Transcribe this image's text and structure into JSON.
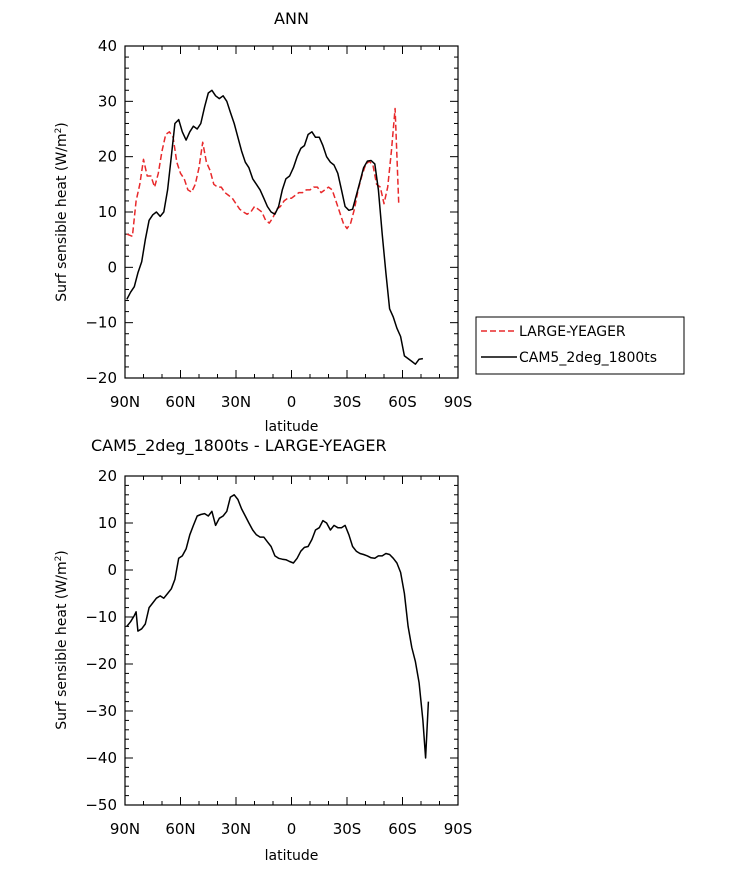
{
  "chart_data": [
    {
      "type": "line",
      "title": "ANN",
      "xlabel": "latitude",
      "ylabel": "Surf sensible heat (W/m²)",
      "ylabel_main": "Surf sensible heat (W/m",
      "ylabel_sup": "2",
      "ylabel_end": ")",
      "xlim": [
        90,
        -90
      ],
      "ylim": [
        -20,
        40
      ],
      "x_ticks": [
        90,
        60,
        30,
        0,
        -30,
        -60,
        -90
      ],
      "x_tick_labels": [
        "90N",
        "60N",
        "30N",
        "0",
        "30S",
        "60S",
        "90S"
      ],
      "y_ticks": [
        -20,
        -10,
        0,
        10,
        20,
        30,
        40
      ],
      "y_tick_labels": [
        "−20",
        "−10",
        "0",
        "10",
        "20",
        "30",
        "40"
      ],
      "legend_position": "right",
      "series": [
        {
          "name": "LARGE-YEAGER",
          "color": "#e8292b",
          "dash": "dashed",
          "points": [
            [
              89,
              6.0
            ],
            [
              86,
              5.6
            ],
            [
              84,
              12
            ],
            [
              82,
              15
            ],
            [
              80,
              19.5
            ],
            [
              78,
              16.5
            ],
            [
              76,
              16.5
            ],
            [
              74,
              14.5
            ],
            [
              72,
              17
            ],
            [
              70,
              21
            ],
            [
              68,
              24
            ],
            [
              66,
              24.5
            ],
            [
              64,
              23.5
            ],
            [
              62,
              19
            ],
            [
              60,
              17
            ],
            [
              58,
              16
            ],
            [
              56,
              14
            ],
            [
              54,
              13.6
            ],
            [
              52,
              15
            ],
            [
              50,
              18
            ],
            [
              48,
              22.6
            ],
            [
              46,
              19
            ],
            [
              44,
              17.5
            ],
            [
              42,
              15
            ],
            [
              40,
              14.5
            ],
            [
              38,
              14.5
            ],
            [
              36,
              13.5
            ],
            [
              34,
              13
            ],
            [
              32,
              12.5
            ],
            [
              30,
              11.5
            ],
            [
              28,
              10.5
            ],
            [
              26,
              10
            ],
            [
              24,
              9.6
            ],
            [
              22,
              10
            ],
            [
              20,
              11
            ],
            [
              18,
              10.5
            ],
            [
              16,
              10
            ],
            [
              14,
              8.5
            ],
            [
              12,
              8
            ],
            [
              10,
              9
            ],
            [
              8,
              10.5
            ],
            [
              6,
              11
            ],
            [
              4,
              12
            ],
            [
              2,
              12.5
            ],
            [
              0,
              12.5
            ],
            [
              -2,
              13
            ],
            [
              -4,
              13.5
            ],
            [
              -6,
              13.5
            ],
            [
              -8,
              14
            ],
            [
              -10,
              14
            ],
            [
              -12,
              14.5
            ],
            [
              -14,
              14.5
            ],
            [
              -16,
              13.5
            ],
            [
              -18,
              14
            ],
            [
              -20,
              14.5
            ],
            [
              -22,
              14
            ],
            [
              -24,
              12
            ],
            [
              -26,
              10
            ],
            [
              -28,
              8
            ],
            [
              -30,
              7
            ],
            [
              -32,
              8
            ],
            [
              -34,
              10.5
            ],
            [
              -36,
              14
            ],
            [
              -38,
              16.5
            ],
            [
              -40,
              18.5
            ],
            [
              -42,
              19.2
            ],
            [
              -44,
              18.5
            ],
            [
              -46,
              15
            ],
            [
              -48,
              14.5
            ],
            [
              -50,
              11.5
            ],
            [
              -52,
              14.5
            ],
            [
              -54,
              21
            ],
            [
              -56,
              28.7
            ],
            [
              -58,
              11.2
            ]
          ]
        },
        {
          "name": "CAM5_2deg_1800ts",
          "color": "#000000",
          "dash": "solid",
          "points": [
            [
              89,
              -5.8
            ],
            [
              87,
              -4.5
            ],
            [
              85,
              -3.5
            ],
            [
              83,
              -1
            ],
            [
              81,
              1
            ],
            [
              79,
              5
            ],
            [
              77,
              8.5
            ],
            [
              75,
              9.5
            ],
            [
              73,
              10
            ],
            [
              71,
              9.2
            ],
            [
              69,
              10
            ],
            [
              67,
              14
            ],
            [
              65,
              20
            ],
            [
              63,
              26
            ],
            [
              61,
              26.7
            ],
            [
              59,
              24.5
            ],
            [
              57,
              23
            ],
            [
              55,
              24.5
            ],
            [
              53,
              25.5
            ],
            [
              51,
              25
            ],
            [
              49,
              26
            ],
            [
              47,
              29
            ],
            [
              45,
              31.5
            ],
            [
              43,
              32
            ],
            [
              41,
              31
            ],
            [
              39,
              30.5
            ],
            [
              37,
              31
            ],
            [
              35,
              30
            ],
            [
              33,
              28
            ],
            [
              31,
              26
            ],
            [
              29,
              23.5
            ],
            [
              27,
              21
            ],
            [
              25,
              19
            ],
            [
              23,
              18
            ],
            [
              21,
              16
            ],
            [
              19,
              15
            ],
            [
              17,
              14
            ],
            [
              15,
              12.5
            ],
            [
              13,
              11
            ],
            [
              11,
              10
            ],
            [
              9,
              9.6
            ],
            [
              7,
              11
            ],
            [
              5,
              14
            ],
            [
              3,
              16
            ],
            [
              1,
              16.5
            ],
            [
              -1,
              18
            ],
            [
              -3,
              20
            ],
            [
              -5,
              21.5
            ],
            [
              -7,
              22
            ],
            [
              -9,
              24
            ],
            [
              -11,
              24.5
            ],
            [
              -13,
              23.5
            ],
            [
              -15,
              23.5
            ],
            [
              -17,
              22
            ],
            [
              -19,
              20
            ],
            [
              -21,
              19
            ],
            [
              -23,
              18.5
            ],
            [
              -25,
              17
            ],
            [
              -27,
              14
            ],
            [
              -29,
              11
            ],
            [
              -31,
              10.3
            ],
            [
              -33,
              10.5
            ],
            [
              -35,
              13
            ],
            [
              -37,
              15.5
            ],
            [
              -39,
              18
            ],
            [
              -41,
              19.2
            ],
            [
              -43,
              19.3
            ],
            [
              -45,
              18.7
            ],
            [
              -47,
              14
            ],
            [
              -49,
              6
            ],
            [
              -51,
              -1
            ],
            [
              -53,
              -7.5
            ],
            [
              -55,
              -9
            ],
            [
              -57,
              -11
            ],
            [
              -59,
              -12.5
            ],
            [
              -61,
              -16
            ],
            [
              -63,
              -16.5
            ],
            [
              -65,
              -17
            ],
            [
              -67,
              -17.5
            ],
            [
              -69,
              -16.6
            ],
            [
              -71,
              -16.5
            ]
          ]
        }
      ]
    },
    {
      "type": "line",
      "title": "CAM5_2deg_1800ts - LARGE-YEAGER",
      "xlabel": "latitude",
      "ylabel": "Surf sensible heat (W/m²)",
      "ylabel_main": "Surf sensible heat (W/m",
      "ylabel_sup": "2",
      "ylabel_end": ")",
      "xlim": [
        90,
        -90
      ],
      "ylim": [
        -50,
        20
      ],
      "x_ticks": [
        90,
        60,
        30,
        0,
        -30,
        -60,
        -90
      ],
      "x_tick_labels": [
        "90N",
        "60N",
        "30N",
        "0",
        "30S",
        "60S",
        "90S"
      ],
      "y_ticks": [
        -50,
        -40,
        -30,
        -20,
        -10,
        0,
        10,
        20
      ],
      "y_tick_labels": [
        "−50",
        "−40",
        "−30",
        "−20",
        "−10",
        "0",
        "10",
        "20"
      ],
      "series": [
        {
          "color": "#000000",
          "dash": "solid",
          "points": [
            [
              89,
              -12
            ],
            [
              87,
              -11
            ],
            [
              85,
              -9.7
            ],
            [
              84,
              -8.9
            ],
            [
              83,
              -13
            ],
            [
              81,
              -12.5
            ],
            [
              79,
              -11.5
            ],
            [
              77,
              -8
            ],
            [
              75,
              -7
            ],
            [
              73,
              -6
            ],
            [
              71,
              -5.5
            ],
            [
              69,
              -6
            ],
            [
              67,
              -5
            ],
            [
              65,
              -4
            ],
            [
              63,
              -2
            ],
            [
              61,
              2.5
            ],
            [
              59,
              3
            ],
            [
              57,
              4.5
            ],
            [
              55,
              7.5
            ],
            [
              53,
              9.5
            ],
            [
              51,
              11.5
            ],
            [
              49,
              11.8
            ],
            [
              47,
              12
            ],
            [
              45,
              11.5
            ],
            [
              43,
              12.5
            ],
            [
              41,
              9.5
            ],
            [
              39,
              11
            ],
            [
              37,
              11.5
            ],
            [
              35,
              12.5
            ],
            [
              33,
              15.5
            ],
            [
              31,
              16
            ],
            [
              29,
              15
            ],
            [
              27,
              13
            ],
            [
              25,
              11.5
            ],
            [
              23,
              10
            ],
            [
              21,
              8.5
            ],
            [
              19,
              7.5
            ],
            [
              17,
              7
            ],
            [
              15,
              7
            ],
            [
              13,
              6
            ],
            [
              11,
              5
            ],
            [
              9,
              3
            ],
            [
              7,
              2.5
            ],
            [
              5,
              2.3
            ],
            [
              3,
              2.2
            ],
            [
              1,
              1.8
            ],
            [
              -1,
              1.5
            ],
            [
              -3,
              2.5
            ],
            [
              -5,
              4
            ],
            [
              -7,
              4.8
            ],
            [
              -9,
              5
            ],
            [
              -11,
              6.5
            ],
            [
              -13,
              8.5
            ],
            [
              -15,
              9
            ],
            [
              -17,
              10.5
            ],
            [
              -19,
              10
            ],
            [
              -21,
              8.5
            ],
            [
              -23,
              9.5
            ],
            [
              -25,
              9
            ],
            [
              -27,
              9
            ],
            [
              -29,
              9.5
            ],
            [
              -31,
              7.5
            ],
            [
              -33,
              5
            ],
            [
              -35,
              4
            ],
            [
              -37,
              3.5
            ],
            [
              -39,
              3.3
            ],
            [
              -41,
              3
            ],
            [
              -43,
              2.6
            ],
            [
              -45,
              2.5
            ],
            [
              -47,
              3
            ],
            [
              -49,
              3
            ],
            [
              -51,
              3.5
            ],
            [
              -53,
              3.3
            ],
            [
              -55,
              2.5
            ],
            [
              -57,
              1.5
            ],
            [
              -59,
              -0.5
            ],
            [
              -61,
              -5
            ],
            [
              -63,
              -12
            ],
            [
              -65,
              -16.5
            ],
            [
              -67,
              -19.5
            ],
            [
              -69,
              -24
            ],
            [
              -71,
              -32
            ],
            [
              -72.5,
              -40
            ],
            [
              -74,
              -28
            ]
          ]
        }
      ]
    }
  ]
}
